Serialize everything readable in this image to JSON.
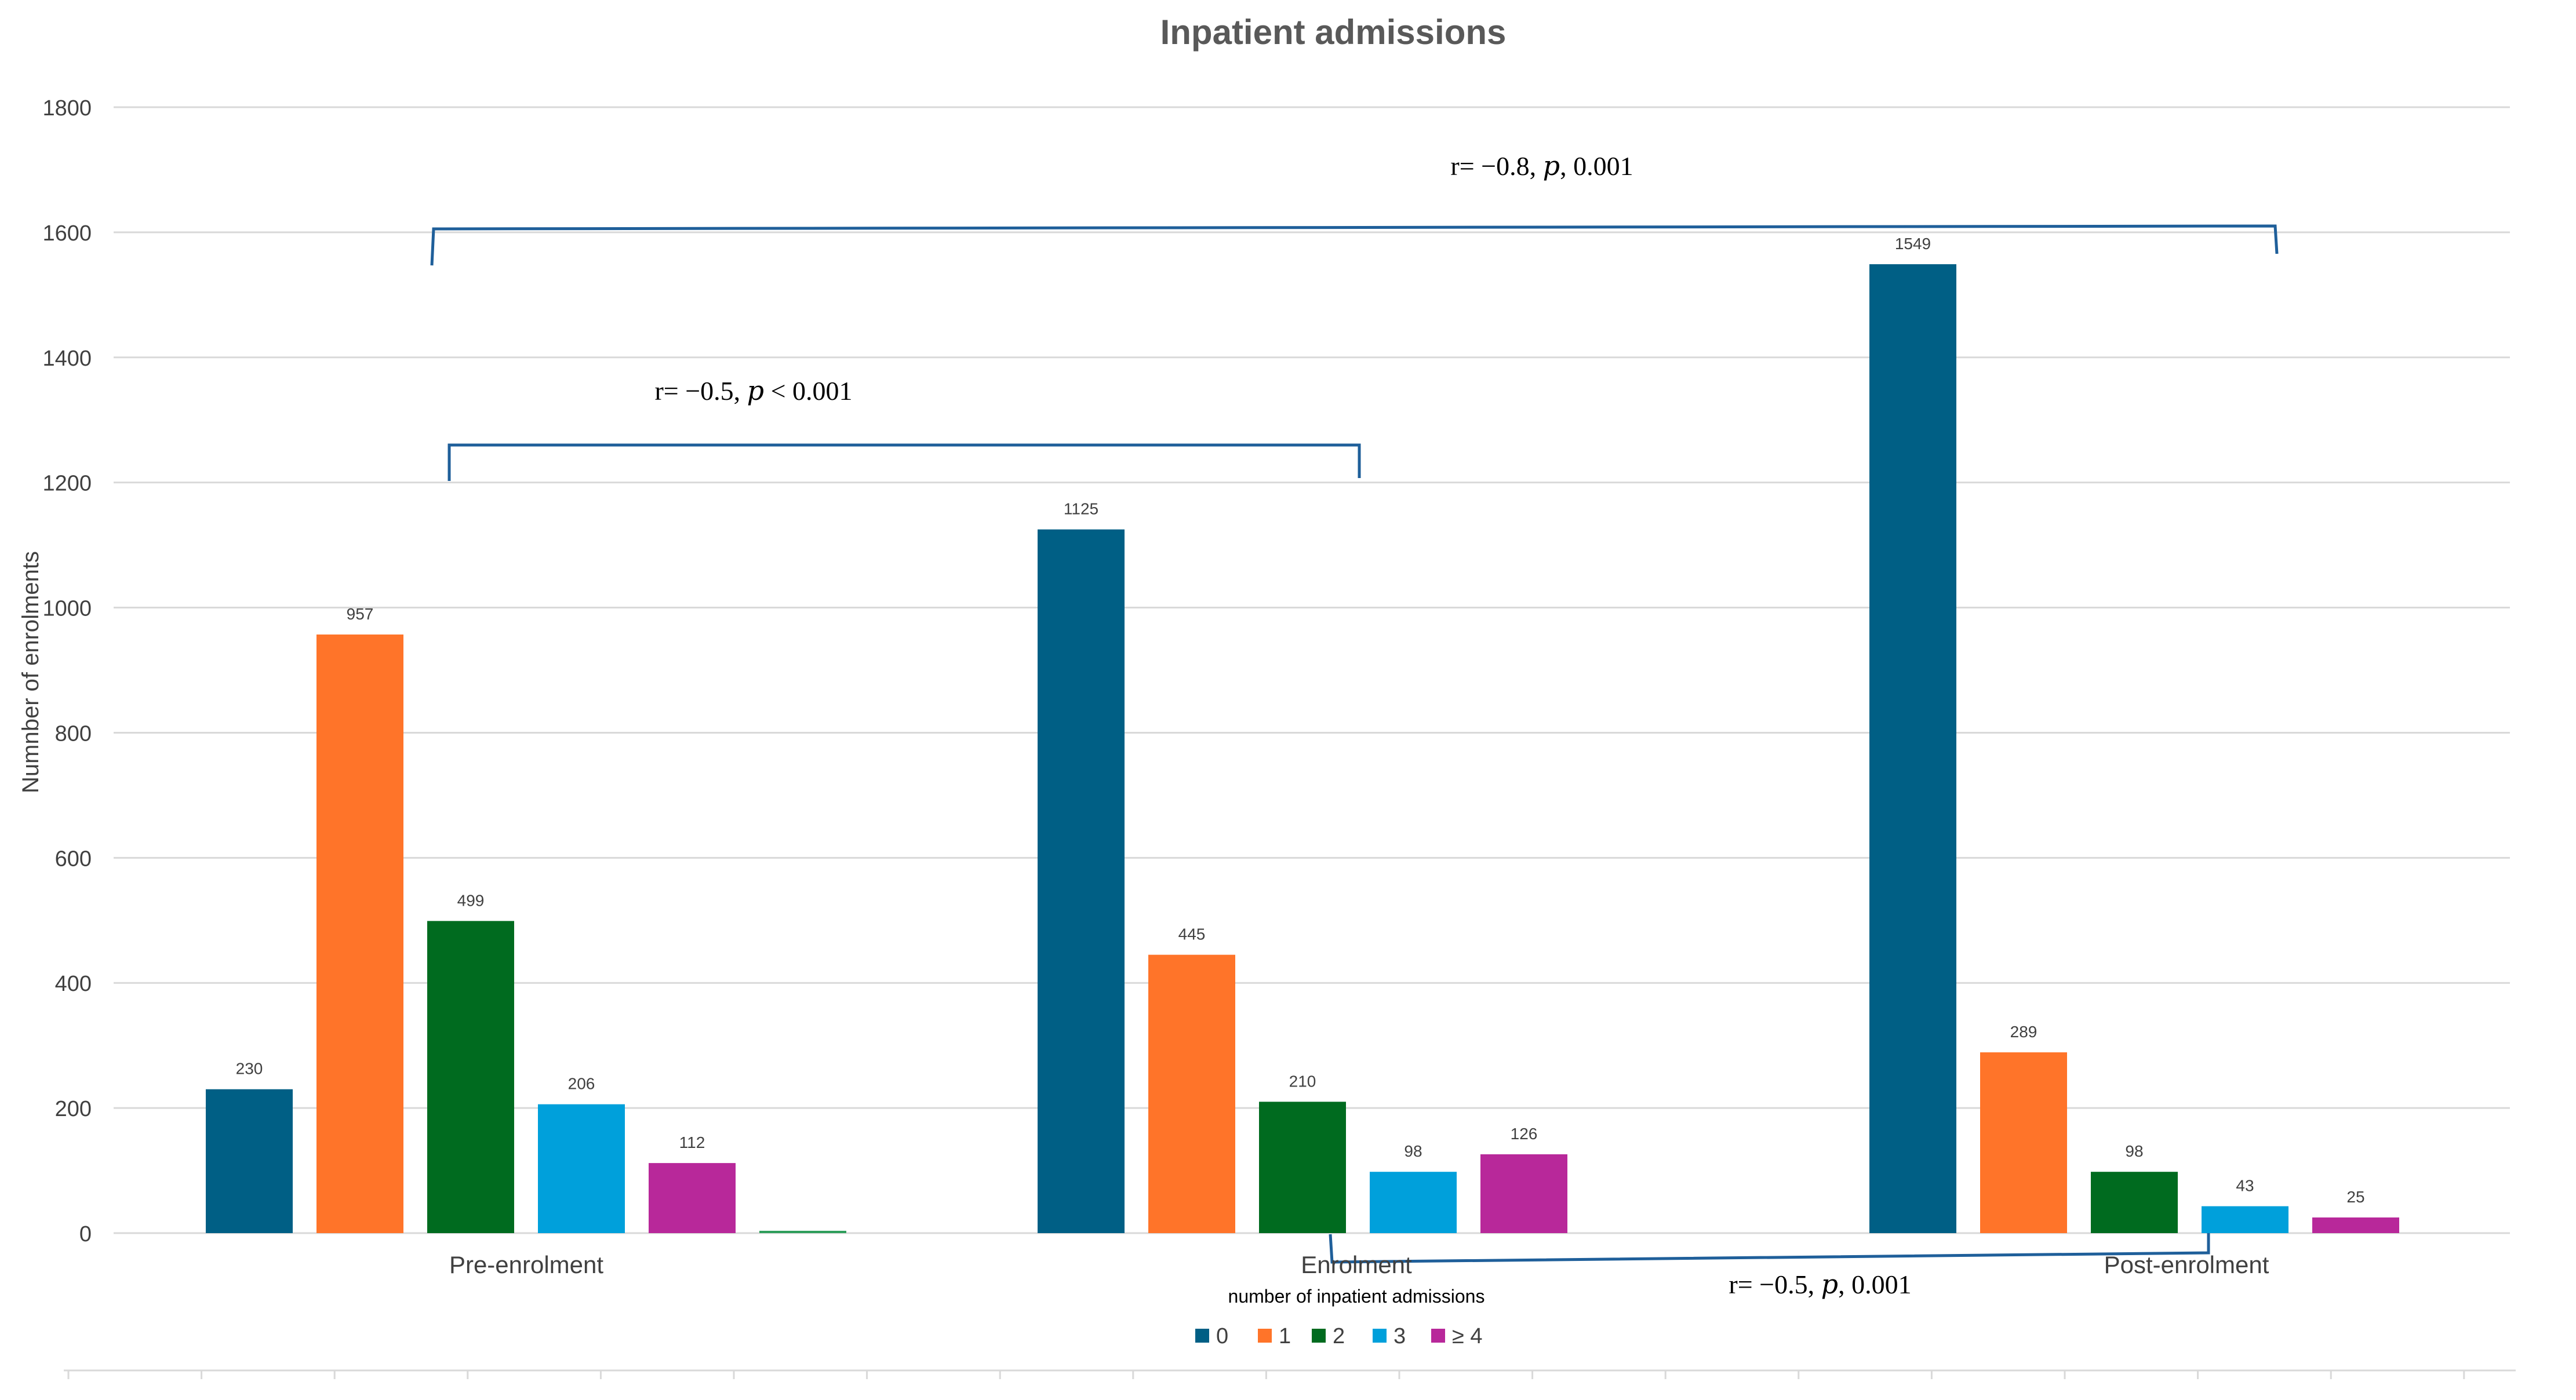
{
  "chart_data": {
    "type": "bar",
    "title": "Inpatient admissions",
    "xlabel": "number of  inpatient admissions",
    "ylabel": "Numnber of enrolments",
    "ylim": [
      0,
      1800
    ],
    "yticks": [
      0,
      200,
      400,
      600,
      800,
      1000,
      1200,
      1400,
      1600,
      1800
    ],
    "grid": true,
    "legend_position": "bottom",
    "categories": [
      "Pre-enrolment",
      "Enrolment",
      "Post-enrolment"
    ],
    "series": [
      {
        "name": "0",
        "color": "#005f85",
        "values": [
          230,
          1125,
          1549
        ]
      },
      {
        "name": "1",
        "color": "#ff7429",
        "values": [
          957,
          445,
          289
        ]
      },
      {
        "name": "2",
        "color": "#006b1f",
        "values": [
          499,
          210,
          98
        ]
      },
      {
        "name": "3",
        "color": "#00a0db",
        "values": [
          206,
          98,
          43
        ]
      },
      {
        "name": "≥ 4",
        "color": "#b8289a",
        "values": [
          112,
          126,
          25
        ]
      }
    ],
    "extra_bar": {
      "category": "Pre-enrolment",
      "value": 0,
      "color": "#2e9e5b"
    },
    "annotations": [
      {
        "id": "pre-post",
        "text": "r= −0.8, 𝑝, 0.001"
      },
      {
        "id": "pre-enrol",
        "text": "r= −0.5, 𝑝 < 0.001"
      },
      {
        "id": "enrol-post",
        "text": "r= −0.5, 𝑝, 0.001"
      }
    ],
    "colors": {
      "bracket": "#1f5f9a",
      "grid": "#d9d9d9",
      "axis_text": "#404040",
      "title": "#595959"
    }
  }
}
